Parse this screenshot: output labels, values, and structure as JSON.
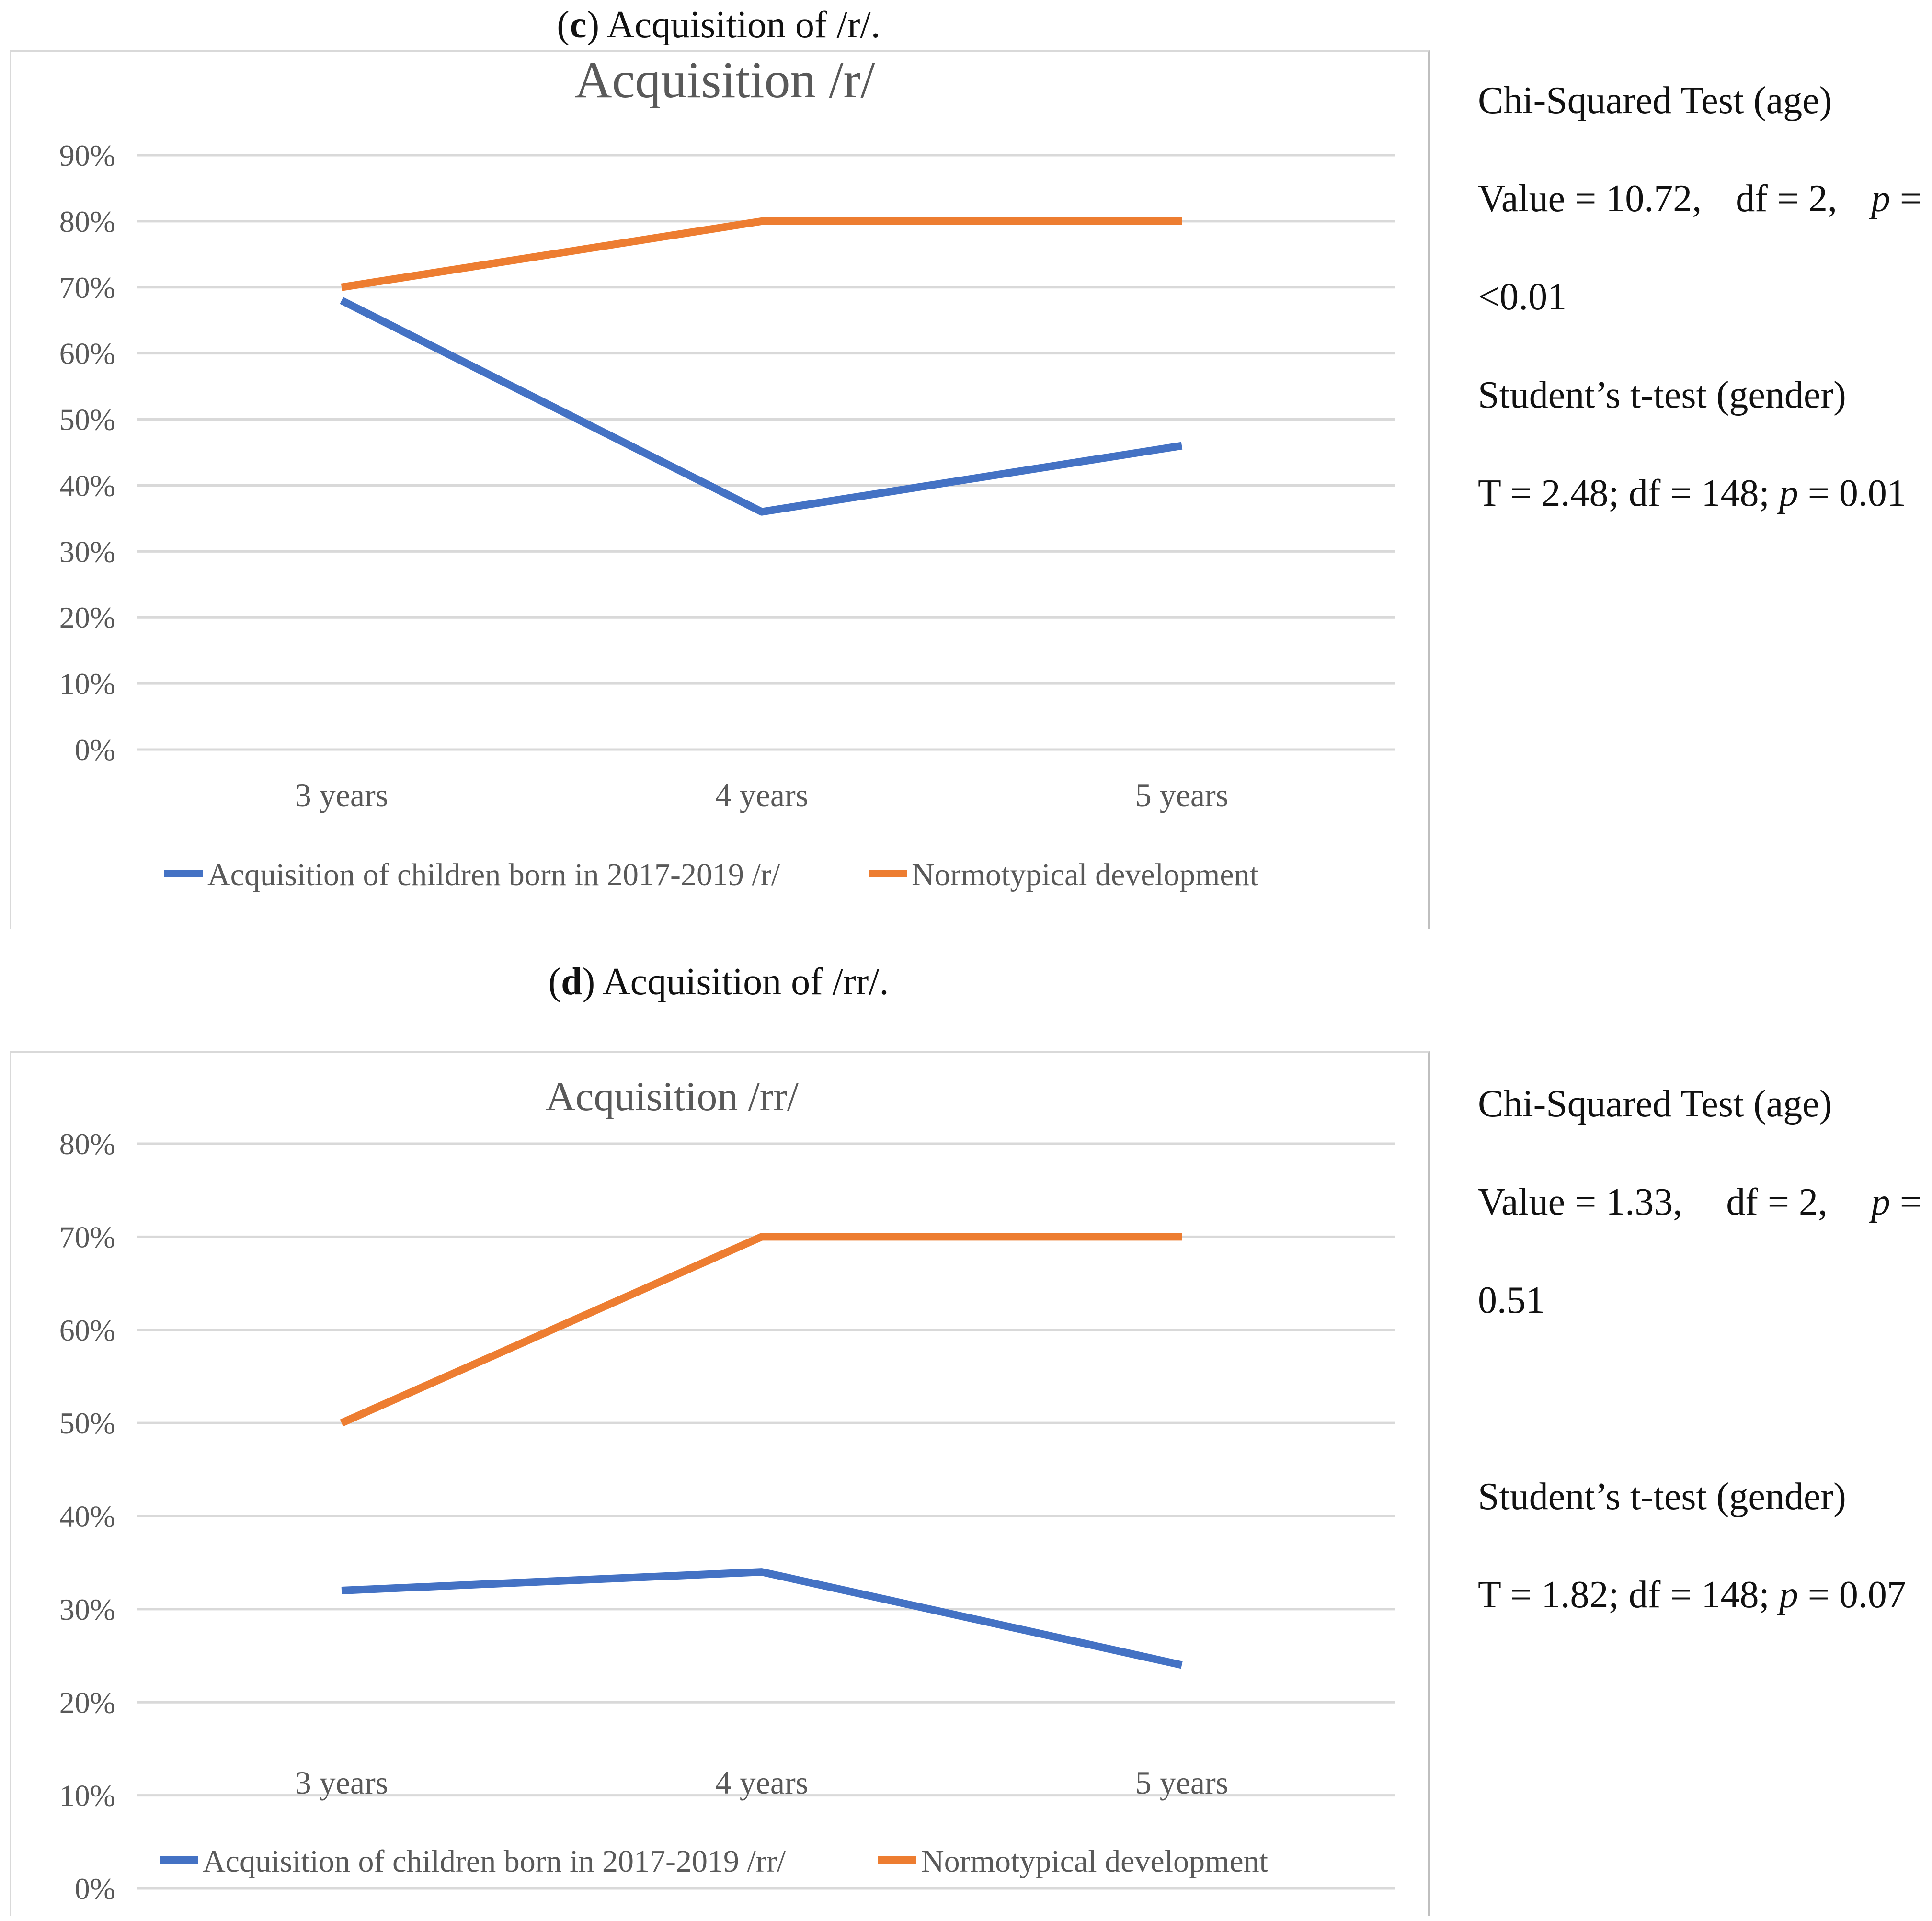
{
  "panels": [
    {
      "id": "c",
      "caption_letter": "c",
      "caption_text": ") Acquisition of /r/.",
      "caption_open": "(",
      "stats": {
        "chi_title": "Chi-Squared Test (age)",
        "chi_value_a": "Value = 10.72,",
        "chi_value_b": "df = 2,",
        "chi_value_c": "p",
        "chi_value_d": "=",
        "chi_value_p": "<0.01",
        "t_title": "Student’s t-test (gender)",
        "t_value_a": "T = 2.48; df = 148;",
        "t_value_p_label": "p",
        "t_value_b": "= 0.01"
      }
    },
    {
      "id": "d",
      "caption_letter": "d",
      "caption_text": ") Acquisition of /rr/.",
      "caption_open": "(",
      "stats": {
        "chi_title": "Chi-Squared Test (age)",
        "chi_value_a": "Value = 1.33,",
        "chi_value_b": "df = 2,",
        "chi_value_c": "p",
        "chi_value_d": "=",
        "chi_value_p": "0.51",
        "t_title": "Student’s t-test (gender)",
        "t_value_a": "T = 1.82; df = 148;",
        "t_value_p_label": "p",
        "t_value_b": "= 0.07"
      }
    }
  ],
  "chart_data": [
    {
      "type": "line",
      "title": "Acquisition /r/",
      "categories": [
        "3 years",
        "4 years",
        "5 years"
      ],
      "ylim": [
        0,
        90
      ],
      "yticks": [
        0,
        10,
        20,
        30,
        40,
        50,
        60,
        70,
        80,
        90
      ],
      "ytick_labels": [
        "0%",
        "10%",
        "20%",
        "30%",
        "40%",
        "50%",
        "60%",
        "70%",
        "80%",
        "90%"
      ],
      "grid": true,
      "legend_position": "bottom",
      "series": [
        {
          "name": "Acquisition of children born in 2017-2019  /r/",
          "color": "#4472C4",
          "values": [
            68,
            36,
            46
          ]
        },
        {
          "name": "Normotypical development",
          "color": "#ED7D31",
          "values": [
            70,
            80,
            80
          ]
        }
      ]
    },
    {
      "type": "line",
      "title": "Acquisition /rr/",
      "categories": [
        "3 years",
        "4 years",
        "5 years"
      ],
      "ylim": [
        0,
        80
      ],
      "yticks": [
        0,
        10,
        20,
        30,
        40,
        50,
        60,
        70,
        80
      ],
      "ytick_labels": [
        "0%",
        "10%",
        "20%",
        "30%",
        "40%",
        "50%",
        "60%",
        "70%",
        "80%"
      ],
      "grid": true,
      "legend_position": "bottom",
      "series": [
        {
          "name": "Acquisition of children born in 2017-2019 /rr/",
          "color": "#4472C4",
          "values": [
            32,
            34,
            24
          ]
        },
        {
          "name": "Normotypical development",
          "color": "#ED7D31",
          "values": [
            50,
            70,
            70
          ]
        }
      ]
    }
  ]
}
